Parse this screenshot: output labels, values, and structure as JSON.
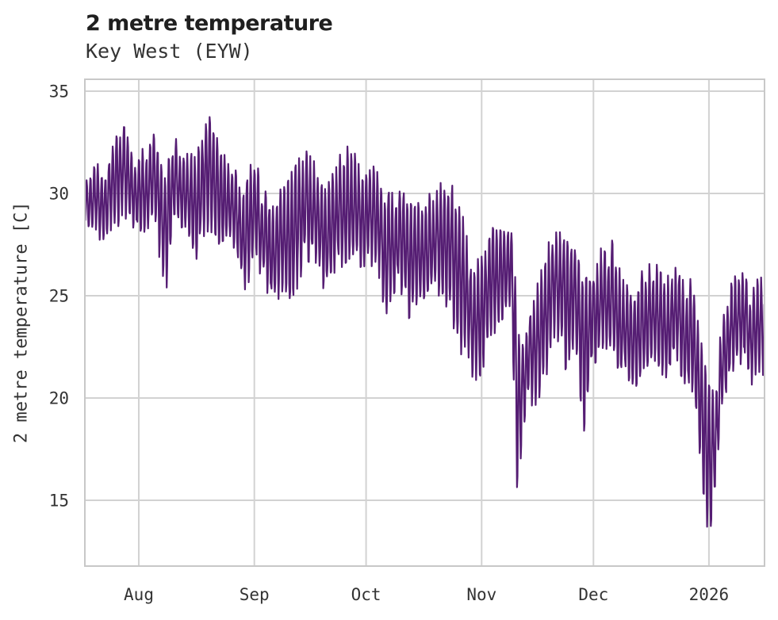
{
  "chart_data": {
    "type": "line",
    "title": "2 metre temperature",
    "subtitle": "Key West (EYW)",
    "ylabel": "2 metre temperature [C]",
    "xlabel": "",
    "series_name": "2 metre temperature",
    "line_color": "#551d73",
    "grid_color": "#d2d2d2",
    "border_color": "#c8c8c8",
    "background": "#ffffff",
    "legend": "none",
    "grid": "on",
    "ylim": [
      11.8,
      35.55
    ],
    "yticks": [
      15,
      20,
      25,
      30,
      35
    ],
    "ytick_labels": [
      "15",
      "20",
      "25",
      "30",
      "35"
    ],
    "xticks": [
      {
        "label": "Aug",
        "day": 14.5
      },
      {
        "label": "Sep",
        "day": 45.5
      },
      {
        "label": "Oct",
        "day": 75.5
      },
      {
        "label": "Nov",
        "day": 106.5
      },
      {
        "label": "Dec",
        "day": 136.5
      },
      {
        "label": "2026",
        "day": 167.5
      }
    ],
    "x_range_days": [
      0,
      182.4
    ],
    "x_units": "days from start of plotted record (mid-July) ; month gridlines fall at the day values in xticks",
    "observed_extremes": {
      "max_c": 34.5,
      "min_c": 12.8
    },
    "sampling": {
      "points_per_day": 8
    },
    "envelope_note": "high-frequency (hourly-style) series summarized as [day, daily_low_C, daily_high_C] keypoints read from the plot; rendered trace oscillates within this envelope",
    "envelope": [
      [
        0,
        28.2,
        31.3
      ],
      [
        3,
        27.8,
        31.5
      ],
      [
        6,
        27.6,
        31.2
      ],
      [
        9,
        28.4,
        33.4
      ],
      [
        11,
        28.6,
        33.2
      ],
      [
        13,
        28.2,
        31.6
      ],
      [
        16,
        27.4,
        32.3
      ],
      [
        19,
        28.4,
        33.0
      ],
      [
        21.5,
        24.6,
        31.2
      ],
      [
        24,
        28.6,
        32.8
      ],
      [
        27,
        28.2,
        32.0
      ],
      [
        30,
        26.8,
        32.4
      ],
      [
        33,
        27.8,
        34.5
      ],
      [
        35,
        27.4,
        33.0
      ],
      [
        38,
        27.8,
        31.8
      ],
      [
        41,
        26.5,
        31.0
      ],
      [
        43,
        24.9,
        30.6
      ],
      [
        45.5,
        26.8,
        32.3
      ],
      [
        48,
        25.6,
        30.2
      ],
      [
        51,
        24.2,
        29.6
      ],
      [
        54,
        25.2,
        30.8
      ],
      [
        56,
        24.2,
        31.8
      ],
      [
        59,
        26.8,
        32.5
      ],
      [
        62,
        26.4,
        31.4
      ],
      [
        65,
        24.8,
        30.6
      ],
      [
        68,
        26.2,
        31.8
      ],
      [
        71,
        26.8,
        32.4
      ],
      [
        74,
        26.4,
        31.5
      ],
      [
        78,
        26.2,
        31.3
      ],
      [
        81,
        23.8,
        30.0
      ],
      [
        84,
        25.4,
        30.2
      ],
      [
        87,
        23.9,
        29.9
      ],
      [
        90,
        24.9,
        29.6
      ],
      [
        93,
        24.8,
        30.1
      ],
      [
        96,
        25.1,
        30.6
      ],
      [
        99,
        23.2,
        30.4
      ],
      [
        102,
        21.6,
        28.8
      ],
      [
        104,
        20.6,
        26.2
      ],
      [
        106.5,
        21.0,
        27.2
      ],
      [
        109,
        22.6,
        28.5
      ],
      [
        112,
        23.6,
        28.8
      ],
      [
        114.5,
        24.0,
        28.8
      ],
      [
        116,
        14.8,
        26.0
      ],
      [
        117.5,
        17.6,
        22.6
      ],
      [
        119,
        19.8,
        24.2
      ],
      [
        121,
        19.4,
        25.6
      ],
      [
        124,
        21.0,
        27.8
      ],
      [
        126.5,
        22.8,
        28.1
      ],
      [
        129,
        21.4,
        28.3
      ],
      [
        131.5,
        22.6,
        27.6
      ],
      [
        134,
        18.4,
        26.6
      ],
      [
        136.5,
        21.6,
        26.2
      ],
      [
        139,
        22.2,
        27.8
      ],
      [
        141.5,
        22.0,
        27.7
      ],
      [
        144,
        20.8,
        26.2
      ],
      [
        147,
        19.8,
        25.2
      ],
      [
        150,
        21.2,
        26.4
      ],
      [
        153,
        21.4,
        26.7
      ],
      [
        156,
        21.0,
        26.2
      ],
      [
        159,
        21.2,
        27.0
      ],
      [
        161.5,
        20.2,
        26.4
      ],
      [
        163.5,
        19.8,
        26.3
      ],
      [
        165.5,
        15.4,
        23.5
      ],
      [
        167.8,
        12.8,
        20.3
      ],
      [
        169.5,
        15.2,
        20.5
      ],
      [
        171,
        19.6,
        24.2
      ],
      [
        173,
        20.8,
        25.3
      ],
      [
        175,
        21.8,
        26.5
      ],
      [
        177,
        21.5,
        26.6
      ],
      [
        179,
        20.6,
        25.2
      ],
      [
        181,
        20.9,
        26.0
      ],
      [
        182.4,
        21.0,
        25.7
      ]
    ]
  }
}
